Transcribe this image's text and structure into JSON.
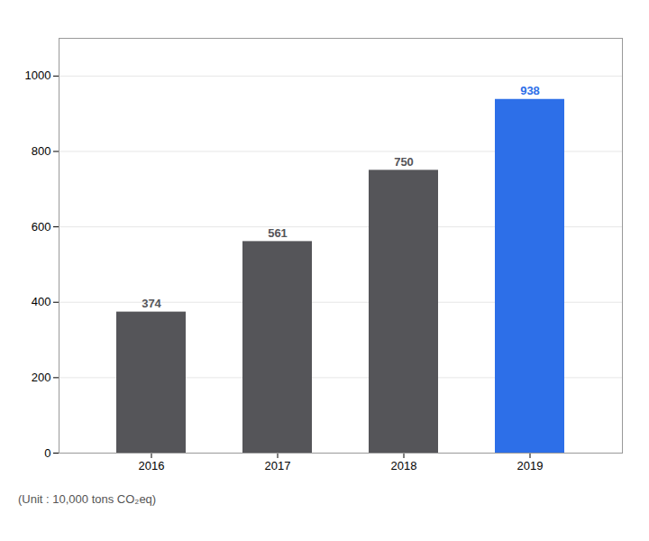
{
  "chart_data": {
    "type": "bar",
    "categories": [
      "2016",
      "2017",
      "2018",
      "2019"
    ],
    "values": [
      374,
      561,
      750,
      938
    ],
    "colors": [
      "#555559",
      "#555559",
      "#555559",
      "#2D6FE8"
    ],
    "ylim": [
      0,
      1100
    ],
    "yticks": [
      0,
      200,
      400,
      600,
      800,
      1000
    ],
    "grid": true,
    "data_labels": true,
    "annotations": [
      "(Unit : 10,000 tons CO₂eq)"
    ]
  }
}
